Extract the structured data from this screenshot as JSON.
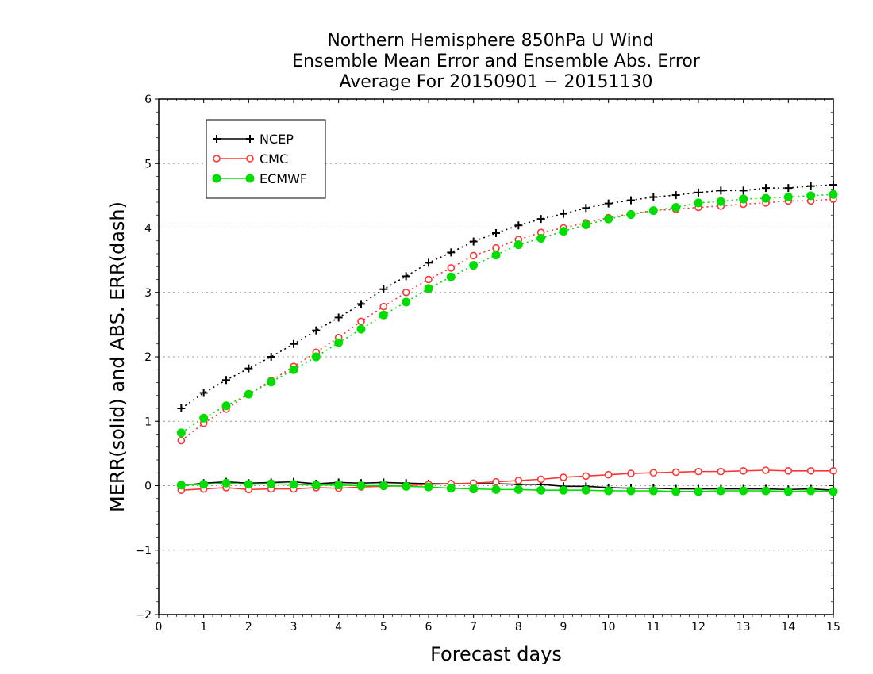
{
  "chart_data": {
    "type": "line",
    "title": [
      "Northern Hemisphere 850hPa U Wind",
      "Ensemble Mean Error and Ensemble Abs. Error",
      "Average For 20150901 − 20151130"
    ],
    "xlabel": "Forecast days",
    "ylabel": "MERR(solid) and ABS. ERR(dash)",
    "xlim": [
      0,
      15
    ],
    "ylim": [
      -2,
      6
    ],
    "xticks": [
      "0",
      "1",
      "2",
      "3",
      "4",
      "5",
      "6",
      "7",
      "8",
      "9",
      "10",
      "11",
      "12",
      "13",
      "14",
      "15"
    ],
    "yticks": [
      "−2",
      "−1",
      "0",
      "1",
      "2",
      "3",
      "4",
      "5",
      "6"
    ],
    "grid": "horizontal dotted",
    "legend_position": "top-left",
    "x": [
      0.5,
      1,
      1.5,
      2,
      2.5,
      3,
      3.5,
      4,
      4.5,
      5,
      5.5,
      6,
      6.5,
      7,
      7.5,
      8,
      8.5,
      9,
      9.5,
      10,
      10.5,
      11,
      11.5,
      12,
      12.5,
      13,
      13.5,
      14,
      14.5,
      15
    ],
    "series": [
      {
        "name": "NCEP",
        "color": "#000000",
        "marker": "plus",
        "abs_error": [
          1.2,
          1.44,
          1.64,
          1.82,
          2.0,
          2.2,
          2.41,
          2.61,
          2.82,
          3.05,
          3.25,
          3.46,
          3.62,
          3.79,
          3.92,
          4.04,
          4.14,
          4.22,
          4.31,
          4.38,
          4.43,
          4.48,
          4.51,
          4.55,
          4.58,
          4.58,
          4.62,
          4.62,
          4.65,
          4.67
        ],
        "mean_error": [
          0.0,
          0.04,
          0.06,
          0.04,
          0.05,
          0.06,
          0.03,
          0.05,
          0.04,
          0.05,
          0.04,
          0.03,
          0.03,
          0.03,
          0.03,
          0.02,
          0.02,
          -0.01,
          -0.01,
          -0.03,
          -0.04,
          -0.04,
          -0.05,
          -0.05,
          -0.05,
          -0.05,
          -0.05,
          -0.06,
          -0.05,
          -0.07
        ]
      },
      {
        "name": "CMC",
        "color": "#ff3333",
        "marker": "open-circle",
        "abs_error": [
          0.7,
          0.97,
          1.19,
          1.42,
          1.63,
          1.85,
          2.07,
          2.3,
          2.55,
          2.78,
          3.0,
          3.2,
          3.38,
          3.57,
          3.69,
          3.82,
          3.93,
          4.0,
          4.08,
          4.16,
          4.22,
          4.27,
          4.29,
          4.32,
          4.34,
          4.37,
          4.39,
          4.42,
          4.42,
          4.45
        ],
        "mean_error": [
          -0.07,
          -0.05,
          -0.03,
          -0.06,
          -0.05,
          -0.05,
          -0.03,
          -0.04,
          -0.02,
          -0.01,
          0.0,
          0.02,
          0.03,
          0.04,
          0.06,
          0.08,
          0.1,
          0.13,
          0.15,
          0.17,
          0.19,
          0.2,
          0.21,
          0.22,
          0.22,
          0.23,
          0.24,
          0.23,
          0.23,
          0.23
        ]
      },
      {
        "name": "ECMWF",
        "color": "#00dd00",
        "marker": "filled-circle",
        "abs_error": [
          0.82,
          1.05,
          1.24,
          1.42,
          1.61,
          1.8,
          2.0,
          2.22,
          2.43,
          2.65,
          2.85,
          3.06,
          3.24,
          3.42,
          3.58,
          3.74,
          3.84,
          3.95,
          4.05,
          4.14,
          4.21,
          4.27,
          4.32,
          4.39,
          4.41,
          4.45,
          4.46,
          4.48,
          4.5,
          4.52
        ],
        "mean_error": [
          0.01,
          0.02,
          0.04,
          0.02,
          0.03,
          0.02,
          0.01,
          0.01,
          0.0,
          0.0,
          -0.01,
          -0.02,
          -0.04,
          -0.05,
          -0.06,
          -0.06,
          -0.07,
          -0.07,
          -0.07,
          -0.08,
          -0.08,
          -0.08,
          -0.09,
          -0.09,
          -0.08,
          -0.08,
          -0.08,
          -0.09,
          -0.08,
          -0.09
        ]
      }
    ]
  }
}
